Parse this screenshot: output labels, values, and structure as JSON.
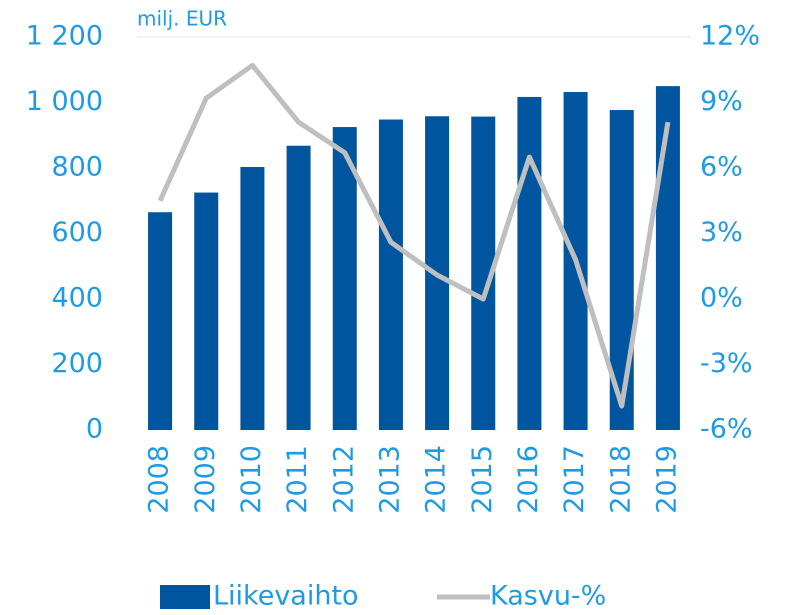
{
  "chart_data": {
    "type": "bar_line",
    "y_label": "milj. EUR",
    "categories": [
      "2008",
      "2009",
      "2010",
      "2011",
      "2012",
      "2013",
      "2014",
      "2015",
      "2016",
      "2017",
      "2018",
      "2019"
    ],
    "series": [
      {
        "name": "Liikevaihto",
        "type": "bar",
        "color": "#00559f",
        "values": [
          665,
          725,
          803,
          868,
          925,
          948,
          958,
          957,
          1017,
          1032,
          977,
          1050
        ]
      },
      {
        "name": "Kasvu-%",
        "type": "line",
        "axis": "y2",
        "color": "#bfbfbf",
        "values": [
          4.5,
          9.2,
          10.7,
          8.1,
          6.7,
          2.6,
          1.1,
          0.0,
          6.5,
          1.8,
          -4.9,
          8.1
        ]
      }
    ],
    "ylim": [
      0,
      1200
    ],
    "yticks": [
      0,
      200,
      400,
      600,
      800,
      {
        "value": 1000,
        "label": "1 000"
      },
      {
        "value": 1200,
        "label": "1 200"
      }
    ],
    "y2lim": [
      -6,
      12
    ],
    "y2ticks": [
      {
        "value": -6,
        "label": "-6%"
      },
      {
        "value": -3,
        "label": "-3%"
      },
      {
        "value": 0,
        "label": "0%"
      },
      {
        "value": 3,
        "label": "3%"
      },
      {
        "value": 6,
        "label": "6%"
      },
      {
        "value": 9,
        "label": "9%"
      },
      {
        "value": 12,
        "label": "12%"
      }
    ],
    "legend": "bottom"
  }
}
